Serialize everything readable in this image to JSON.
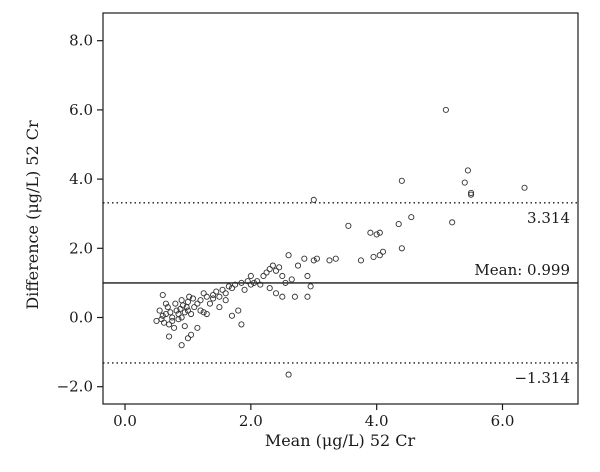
{
  "chart_data": {
    "type": "scatter",
    "title": "",
    "xlabel": "Mean (μg/L) 52 Cr",
    "ylabel": "Difference (μg/L) 52 Cr",
    "xlim": [
      -0.35,
      7.2
    ],
    "ylim": [
      -2.5,
      8.8
    ],
    "xticks": [
      "0.0",
      "2.0",
      "4.0",
      "6.0"
    ],
    "yticks": [
      "−2.0",
      "0.0",
      "2.0",
      "4.0",
      "6.0",
      "8.0"
    ],
    "grid": false,
    "reference_lines": [
      {
        "value": 0.999,
        "label": "Mean: 0.999",
        "style": "solid"
      },
      {
        "value": 3.314,
        "label": "3.314",
        "style": "dotted"
      },
      {
        "value": -1.314,
        "label": "−1.314",
        "style": "dotted"
      }
    ],
    "points": [
      [
        0.5,
        -0.1
      ],
      [
        0.55,
        0.2
      ],
      [
        0.6,
        0.05
      ],
      [
        0.62,
        -0.15
      ],
      [
        0.65,
        0.1
      ],
      [
        0.68,
        0.3
      ],
      [
        0.7,
        -0.2
      ],
      [
        0.72,
        0.15
      ],
      [
        0.75,
        0.0
      ],
      [
        0.78,
        -0.3
      ],
      [
        0.8,
        0.4
      ],
      [
        0.82,
        0.2
      ],
      [
        0.85,
        0.1
      ],
      [
        0.85,
        -0.05
      ],
      [
        0.88,
        0.25
      ],
      [
        0.9,
        0.5
      ],
      [
        0.9,
        0.0
      ],
      [
        0.92,
        0.35
      ],
      [
        0.95,
        0.15
      ],
      [
        0.95,
        -0.25
      ],
      [
        0.98,
        0.3
      ],
      [
        1.0,
        0.2
      ],
      [
        1.0,
        0.45
      ],
      [
        1.02,
        0.6
      ],
      [
        1.05,
        0.1
      ],
      [
        1.05,
        -0.5
      ],
      [
        1.08,
        0.55
      ],
      [
        1.1,
        0.3
      ],
      [
        0.7,
        -0.55
      ],
      [
        0.75,
        -0.1
      ],
      [
        0.6,
        0.65
      ],
      [
        0.65,
        0.4
      ],
      [
        0.58,
        -0.05
      ],
      [
        0.9,
        -0.8
      ],
      [
        1.0,
        -0.6
      ],
      [
        1.15,
        0.4
      ],
      [
        1.2,
        0.5
      ],
      [
        1.2,
        0.2
      ],
      [
        1.25,
        0.7
      ],
      [
        1.3,
        0.6
      ],
      [
        1.3,
        0.1
      ],
      [
        1.35,
        0.4
      ],
      [
        1.4,
        0.55
      ],
      [
        1.45,
        0.75
      ],
      [
        1.5,
        0.6
      ],
      [
        1.5,
        0.3
      ],
      [
        1.55,
        0.8
      ],
      [
        1.6,
        0.7
      ],
      [
        1.65,
        0.9
      ],
      [
        1.7,
        0.85
      ],
      [
        1.7,
        0.05
      ],
      [
        1.75,
        0.95
      ],
      [
        1.8,
        0.2
      ],
      [
        1.85,
        1.0
      ],
      [
        1.85,
        -0.2
      ],
      [
        1.9,
        0.8
      ],
      [
        1.95,
        1.05
      ],
      [
        2.0,
        0.95
      ],
      [
        2.0,
        1.2
      ],
      [
        2.05,
        1.0
      ],
      [
        2.1,
        1.05
      ],
      [
        1.15,
        -0.3
      ],
      [
        1.25,
        0.15
      ],
      [
        1.4,
        0.65
      ],
      [
        2.2,
        1.2
      ],
      [
        2.25,
        1.3
      ],
      [
        2.3,
        1.4
      ],
      [
        2.3,
        0.85
      ],
      [
        2.35,
        1.5
      ],
      [
        2.4,
        1.35
      ],
      [
        2.4,
        0.7
      ],
      [
        2.45,
        1.45
      ],
      [
        2.5,
        1.2
      ],
      [
        2.5,
        0.6
      ],
      [
        2.55,
        1.0
      ],
      [
        2.6,
        1.8
      ],
      [
        2.6,
        -1.65
      ],
      [
        2.65,
        1.1
      ],
      [
        2.7,
        0.6
      ],
      [
        2.75,
        1.5
      ],
      [
        2.85,
        1.7
      ],
      [
        2.9,
        1.2
      ],
      [
        2.9,
        0.6
      ],
      [
        2.95,
        0.9
      ],
      [
        3.0,
        1.65
      ],
      [
        3.05,
        1.7
      ],
      [
        3.25,
        1.65
      ],
      [
        3.35,
        1.7
      ],
      [
        3.0,
        3.4
      ],
      [
        3.55,
        2.65
      ],
      [
        3.75,
        1.65
      ],
      [
        3.9,
        2.45
      ],
      [
        3.95,
        1.75
      ],
      [
        4.0,
        2.4
      ],
      [
        4.05,
        2.45
      ],
      [
        4.05,
        1.8
      ],
      [
        4.1,
        1.9
      ],
      [
        4.35,
        2.7
      ],
      [
        4.4,
        2.0
      ],
      [
        4.4,
        3.95
      ],
      [
        4.55,
        2.9
      ],
      [
        5.1,
        6.0
      ],
      [
        5.2,
        2.75
      ],
      [
        5.4,
        3.9
      ],
      [
        5.45,
        4.25
      ],
      [
        5.5,
        3.55
      ],
      [
        5.5,
        3.6
      ],
      [
        6.35,
        3.75
      ],
      [
        2.15,
        0.95
      ],
      [
        1.6,
        0.5
      ]
    ]
  }
}
